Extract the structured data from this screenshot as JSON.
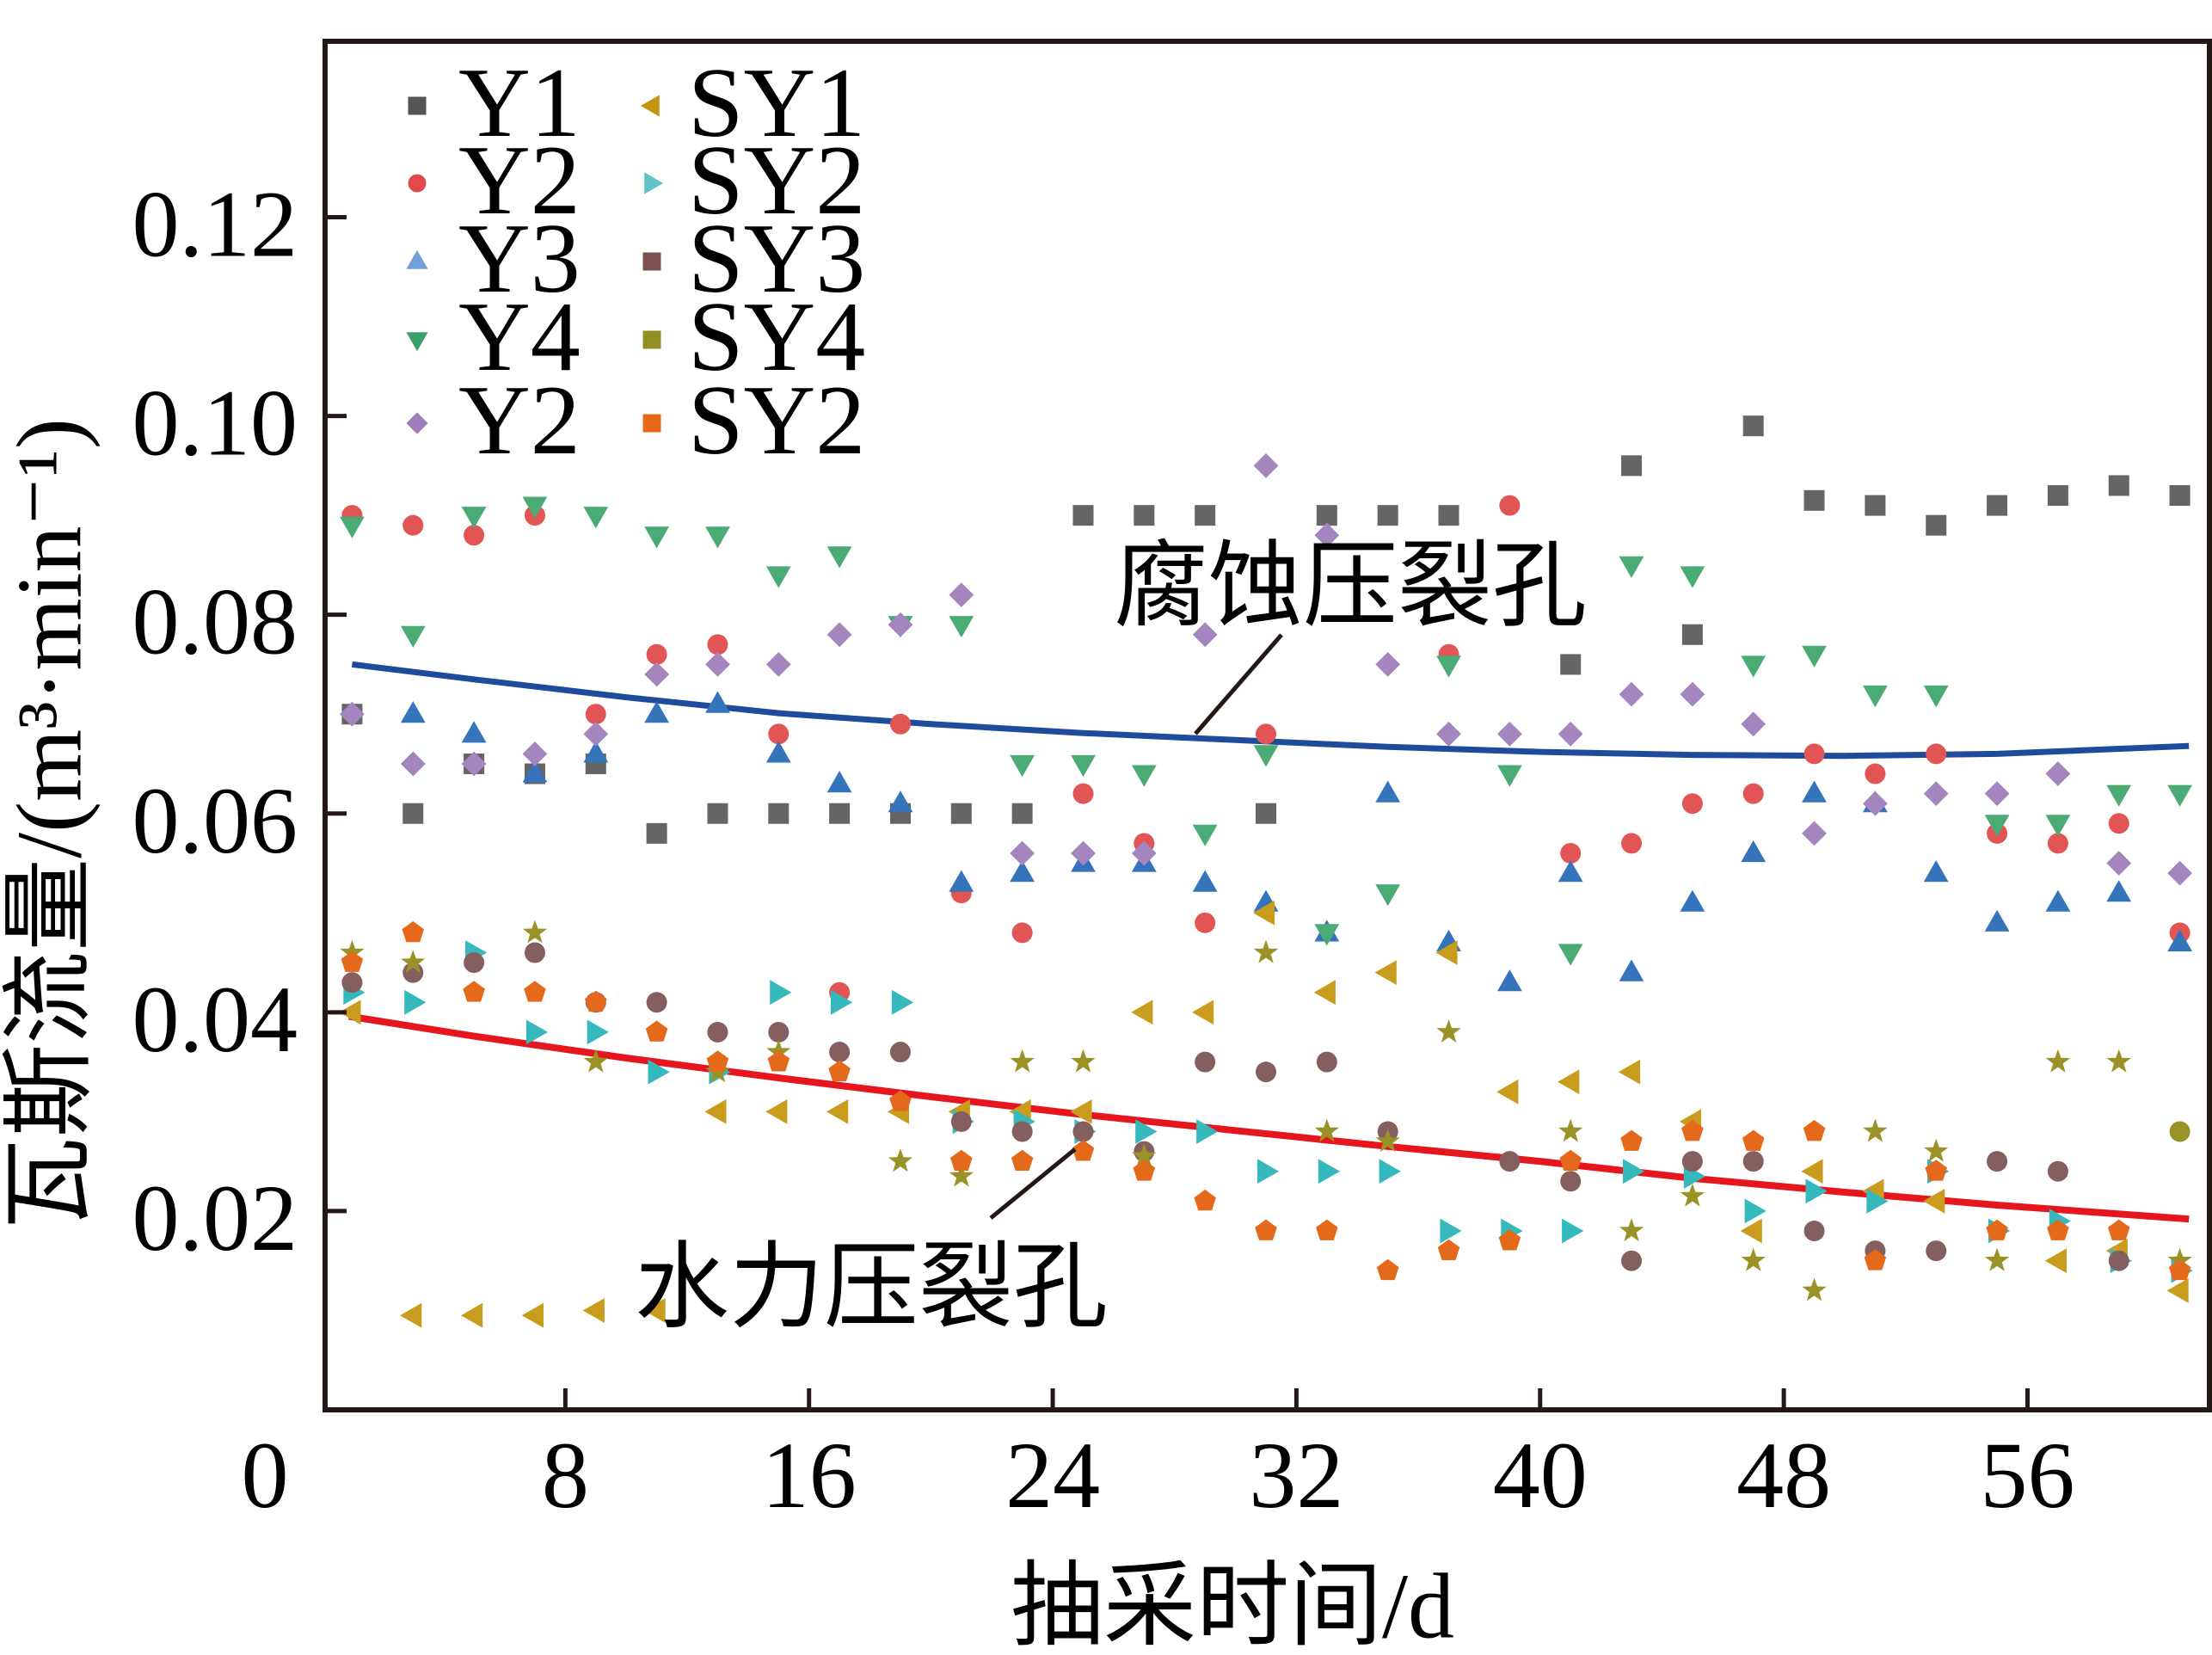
{
  "chart_data": {
    "type": "scatter",
    "title": "",
    "xlabel": "抽采时间/d",
    "ylabel": "瓦斯流量/(m³·min⁻¹)",
    "origin_label": "0",
    "xlim": [
      0,
      62
    ],
    "ylim": [
      0,
      0.1377
    ],
    "grid": false,
    "legend_position": "top-left",
    "xticks": {
      "values": [
        8,
        16,
        24,
        32,
        40,
        48,
        56
      ],
      "labels": [
        "8",
        "16",
        "24",
        "32",
        "40",
        "48",
        "56"
      ]
    },
    "yticks": {
      "values": [
        0.02,
        0.04,
        0.06,
        0.08,
        0.1,
        0.12
      ],
      "labels": [
        "0.02",
        "0.04",
        "0.06",
        "0.08",
        "0.10",
        "0.12"
      ]
    },
    "x": [
      1,
      3,
      5,
      7,
      9,
      11,
      13,
      15,
      17,
      19,
      21,
      23,
      25,
      27,
      29,
      31,
      33,
      35,
      37,
      39,
      41,
      43,
      45,
      47,
      49,
      51,
      53,
      55,
      57,
      59,
      61
    ],
    "series": [
      {
        "name": "Y1",
        "marker": "square",
        "color": "#656565",
        "legend_marker": "square",
        "legend_color": "#555555",
        "values": [
          0.07,
          0.06,
          0.065,
          0.064,
          0.065,
          0.058,
          0.06,
          0.06,
          0.06,
          0.06,
          0.06,
          0.06,
          0.09,
          0.09,
          0.09,
          0.06,
          0.09,
          0.09,
          0.09,
          null,
          0.075,
          0.095,
          0.078,
          0.099,
          0.0915,
          0.091,
          0.089,
          0.091,
          0.092,
          0.093,
          0.092
        ]
      },
      {
        "name": "Y2",
        "marker": "circle",
        "color": "#e15555",
        "legend_marker": "circle",
        "legend_color": "#e04a4a",
        "values": [
          0.09,
          0.089,
          0.088,
          0.09,
          0.07,
          0.076,
          0.077,
          0.068,
          0.042,
          0.069,
          0.052,
          0.048,
          0.062,
          0.057,
          0.049,
          0.068,
          null,
          null,
          0.076,
          0.091,
          0.056,
          0.057,
          0.061,
          0.062,
          0.066,
          0.064,
          0.066,
          0.058,
          0.057,
          0.059,
          0.048
        ]
      },
      {
        "name": "Y3",
        "marker": "triangle-up",
        "color": "#3574ba",
        "legend_marker": "triangle-up",
        "legend_color": "#72a1d6",
        "values": [
          null,
          0.07,
          0.068,
          0.064,
          0.066,
          0.07,
          0.071,
          0.066,
          0.063,
          0.061,
          0.053,
          0.054,
          0.055,
          0.055,
          0.053,
          0.051,
          0.048,
          0.062,
          0.047,
          0.043,
          0.054,
          0.044,
          0.051,
          0.056,
          0.062,
          0.061,
          0.054,
          0.049,
          0.051,
          0.052,
          0.047
        ]
      },
      {
        "name": "Y4",
        "marker": "triangle-down",
        "color": "#4aac74",
        "legend_marker": "triangle-down",
        "legend_color": "#3a9f68",
        "values": [
          0.089,
          0.078,
          0.09,
          0.091,
          0.09,
          0.088,
          0.088,
          0.084,
          0.086,
          0.079,
          0.079,
          0.065,
          0.065,
          0.064,
          0.058,
          0.066,
          0.048,
          0.052,
          0.075,
          0.064,
          0.046,
          0.085,
          0.084,
          0.075,
          0.076,
          0.072,
          0.072,
          0.059,
          0.059,
          0.062,
          0.062
        ]
      },
      {
        "name": "Y2",
        "marker": "diamond",
        "color": "#a585bd",
        "legend_marker": "diamond",
        "legend_color": "#a07dba",
        "values": [
          0.07,
          0.065,
          0.065,
          0.066,
          0.068,
          0.074,
          0.075,
          0.075,
          0.078,
          0.079,
          0.082,
          0.056,
          0.056,
          0.056,
          0.078,
          0.095,
          0.088,
          0.075,
          0.068,
          0.068,
          0.068,
          0.072,
          0.072,
          0.069,
          0.058,
          0.061,
          0.062,
          0.062,
          0.064,
          0.055,
          0.054
        ]
      },
      {
        "name": "SY1",
        "marker": "triangle-left",
        "color": "#c99c1e",
        "legend_marker": "triangle-left",
        "legend_color": "#c4960f",
        "values": [
          0.04,
          0.0095,
          0.0095,
          0.0095,
          0.01,
          0.01,
          0.03,
          0.03,
          0.03,
          0.03,
          0.03,
          0.03,
          0.03,
          0.04,
          0.04,
          0.05,
          0.042,
          0.044,
          0.046,
          0.032,
          0.033,
          0.034,
          0.029,
          0.018,
          0.024,
          0.022,
          0.021,
          null,
          0.015,
          0.016,
          0.012
        ]
      },
      {
        "name": "SY2",
        "marker": "triangle-right",
        "color": "#35b9bc",
        "legend_marker": "triangle-right",
        "legend_color": "#60c4c9",
        "values": [
          0.042,
          0.041,
          0.046,
          0.038,
          0.038,
          0.034,
          0.034,
          0.042,
          0.041,
          0.041,
          0.029,
          0.029,
          0.028,
          0.028,
          0.028,
          0.024,
          0.024,
          0.024,
          0.018,
          0.018,
          0.018,
          0.024,
          0.0235,
          0.02,
          0.022,
          0.021,
          0.024,
          0.018,
          0.019,
          0.015,
          0.014
        ]
      },
      {
        "name": "SY3",
        "marker": "circle",
        "color": "#855e5f",
        "legend_marker": "square",
        "legend_color": "#7b5050",
        "values": [
          0.043,
          0.044,
          0.045,
          0.046,
          0.041,
          0.041,
          0.038,
          0.038,
          0.036,
          0.036,
          0.029,
          0.028,
          0.028,
          0.026,
          0.035,
          0.034,
          0.035,
          0.028,
          null,
          0.025,
          0.023,
          0.015,
          0.025,
          0.025,
          0.018,
          0.016,
          0.016,
          0.025,
          0.024,
          0.015,
          null
        ]
      },
      {
        "name": "SY4",
        "marker": "star",
        "color": "#9a9227",
        "legend_marker": "square",
        "legend_color": "#928f24",
        "values": [
          0.046,
          0.045,
          null,
          0.048,
          0.035,
          null,
          0.034,
          0.036,
          null,
          0.025,
          0.0235,
          0.035,
          0.035,
          0.0255,
          null,
          0.046,
          0.028,
          0.027,
          0.038,
          null,
          0.028,
          0.018,
          0.0215,
          0.015,
          0.012,
          0.028,
          0.026,
          0.015,
          0.035,
          0.035,
          0.015
        ]
      },
      {
        "name": "SY2",
        "marker": "pentagon",
        "color": "#e5691a",
        "legend_marker": "square",
        "legend_color": "#e8681a",
        "values": [
          0.045,
          0.048,
          0.042,
          0.042,
          0.041,
          0.038,
          0.035,
          0.035,
          0.034,
          0.031,
          0.025,
          0.025,
          0.026,
          0.024,
          0.021,
          0.018,
          0.018,
          0.014,
          0.016,
          0.017,
          0.025,
          0.027,
          0.028,
          0.027,
          0.028,
          0.015,
          0.024,
          0.018,
          0.018,
          0.018,
          0.014
        ]
      }
    ],
    "extra_points": [
      {
        "x": 61,
        "y": 0.028,
        "marker": "circle",
        "color": "#9a9227"
      }
    ],
    "fit_curves": [
      {
        "label": "腐蚀压裂孔",
        "color": "#1f4b9c",
        "x": [
          1,
          5,
          10,
          15,
          20,
          25,
          30,
          35,
          40,
          45,
          50,
          55,
          61.3
        ],
        "y": [
          0.075,
          0.0735,
          0.0717,
          0.0701,
          0.069,
          0.0681,
          0.0674,
          0.0667,
          0.0662,
          0.0659,
          0.0658,
          0.066,
          0.0668
        ]
      },
      {
        "label": "水力压裂孔",
        "color": "#e5161d",
        "x": [
          0.9,
          5,
          10,
          15,
          20,
          25,
          30,
          35,
          40,
          45,
          50,
          55,
          61.3
        ],
        "y": [
          0.0396,
          0.0376,
          0.0354,
          0.0334,
          0.0315,
          0.0297,
          0.0281,
          0.0265,
          0.025,
          0.0233,
          0.0219,
          0.0206,
          0.0192
        ]
      }
    ],
    "annotations": [
      {
        "text": "腐蚀压裂孔"
      },
      {
        "text": "水力压裂孔"
      }
    ]
  }
}
